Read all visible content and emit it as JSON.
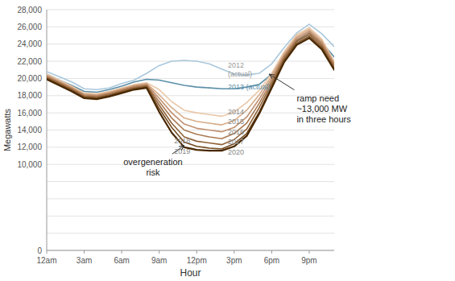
{
  "chart_data": {
    "type": "line",
    "xlabel": "Hour",
    "ylabel": "Megawatts",
    "x": [
      0,
      1,
      2,
      3,
      4,
      5,
      6,
      7,
      8,
      9,
      10,
      11,
      12,
      13,
      14,
      15,
      16,
      17,
      18,
      19,
      20,
      21,
      22,
      23
    ],
    "xlim": [
      0,
      23
    ],
    "xticks": [
      {
        "value": 0,
        "label": "12am"
      },
      {
        "value": 3,
        "label": "3am"
      },
      {
        "value": 6,
        "label": "6am"
      },
      {
        "value": 9,
        "label": "9am"
      },
      {
        "value": 12,
        "label": "12pm"
      },
      {
        "value": 15,
        "label": "3pm"
      },
      {
        "value": 18,
        "label": "6pm"
      },
      {
        "value": 21,
        "label": "9pm"
      }
    ],
    "ylim": [
      0,
      28000
    ],
    "yticks": [
      0,
      {
        "value": 2000,
        "label": null
      },
      {
        "value": 4000,
        "label": null
      },
      {
        "value": 6000,
        "label": null
      },
      {
        "value": 8000,
        "label": null
      },
      {
        "value": 10000,
        "label": "10,000"
      },
      {
        "value": 12000,
        "label": "12,000"
      },
      {
        "value": 14000,
        "label": "14,000"
      },
      {
        "value": 16000,
        "label": "16,000"
      },
      {
        "value": 18000,
        "label": "18,000"
      },
      {
        "value": 20000,
        "label": "20,000"
      },
      {
        "value": 22000,
        "label": "22,000"
      },
      {
        "value": 24000,
        "label": "24,000"
      },
      {
        "value": 26000,
        "label": "26,000"
      },
      {
        "value": 28000,
        "label": "28,000"
      }
    ],
    "grid": true,
    "series": [
      {
        "name": "2012",
        "color": "#aac8dc",
        "values": [
          20800,
          20200,
          19600,
          18800,
          18700,
          18900,
          19400,
          19800,
          20600,
          21500,
          22000,
          22100,
          22000,
          21700,
          21100,
          20500,
          20400,
          20600,
          21700,
          23600,
          25300,
          26300,
          25200,
          23700
        ]
      },
      {
        "name": "2013",
        "color": "#5b8fa8",
        "values": [
          20500,
          19800,
          19200,
          18500,
          18400,
          18700,
          19100,
          19600,
          19900,
          19800,
          19500,
          19200,
          19000,
          18900,
          18800,
          18800,
          19000,
          19300,
          20500,
          22500,
          24400,
          25300,
          24200,
          22500
        ]
      },
      {
        "name": "2014",
        "color": "#eac8a8",
        "values": [
          20500,
          19800,
          19100,
          18300,
          18200,
          18500,
          18900,
          19300,
          19500,
          18700,
          17300,
          16300,
          16000,
          15800,
          15600,
          16100,
          17200,
          18600,
          20600,
          23100,
          25100,
          25900,
          24600,
          22000
        ]
      },
      {
        "name": "2015",
        "color": "#d6ac88",
        "values": [
          20400,
          19700,
          19000,
          18200,
          18100,
          18400,
          18800,
          19200,
          19400,
          18100,
          16600,
          15400,
          15000,
          14800,
          14600,
          15100,
          16300,
          18100,
          20300,
          22900,
          24900,
          25700,
          24400,
          21800
        ]
      },
      {
        "name": "2016",
        "color": "#c29070",
        "values": [
          20300,
          19600,
          18900,
          18100,
          18000,
          18300,
          18700,
          19100,
          19300,
          17700,
          16000,
          14700,
          14200,
          14000,
          13800,
          14300,
          15500,
          17600,
          20000,
          22700,
          24700,
          25500,
          24200,
          21700
        ]
      },
      {
        "name": "2017",
        "color": "#aa7a52",
        "values": [
          20200,
          19500,
          18800,
          18000,
          17900,
          18200,
          18600,
          19000,
          19200,
          17300,
          15400,
          14000,
          13500,
          13200,
          13000,
          13600,
          14800,
          17100,
          19700,
          22500,
          24500,
          25300,
          24000,
          21500
        ]
      },
      {
        "name": "2018",
        "color": "#8e6238",
        "values": [
          20100,
          19400,
          18700,
          17900,
          17800,
          18100,
          18500,
          18900,
          19100,
          16900,
          14800,
          13200,
          12700,
          12500,
          12300,
          12900,
          14100,
          16600,
          19400,
          22300,
          24300,
          25100,
          23800,
          21300
        ]
      },
      {
        "name": "2019",
        "color": "#724a20",
        "values": [
          20000,
          19300,
          18600,
          17800,
          17700,
          18000,
          18400,
          18800,
          19000,
          16500,
          14300,
          12600,
          12100,
          11900,
          11800,
          12400,
          13600,
          16100,
          19100,
          22100,
          24100,
          24900,
          23600,
          21100
        ]
      },
      {
        "name": "2020",
        "color": "#4a2800",
        "values": [
          19900,
          19200,
          18500,
          17700,
          17600,
          17900,
          18300,
          18700,
          18900,
          16100,
          13700,
          12000,
          11700,
          11600,
          11600,
          12100,
          13300,
          15900,
          18900,
          21900,
          23900,
          24700,
          23400,
          21000
        ]
      }
    ],
    "annotations": [
      {
        "text": "2012\n(actual)",
        "x": 14.5,
        "y": 21000,
        "color": "#999999"
      },
      {
        "text": "2013 (actual)",
        "x": 14.5,
        "y": 19000,
        "color": "#5b8fa8"
      },
      {
        "text": "2014",
        "x": 14.5,
        "y": 16100,
        "color": "#888888"
      },
      {
        "text": "2015",
        "x": 14.5,
        "y": 15050,
        "color": "#888888"
      },
      {
        "text": "2016",
        "x": 14.5,
        "y": 14050,
        "color": "#888888"
      },
      {
        "text": "2017",
        "x": 14.5,
        "y": 13100,
        "color": "#888888"
      },
      {
        "text": "2018",
        "x": 10.2,
        "y": 12700,
        "color": "#888888"
      },
      {
        "text": "2019",
        "x": 10.2,
        "y": 12200,
        "color": "#888888"
      },
      {
        "text": "2020",
        "x": 14.5,
        "y": 11900,
        "color": "#888888"
      },
      {
        "text": "overgeneration\nrisk",
        "x": 8.5,
        "y": 10600,
        "arrow_x": 11.0,
        "arrow_y": 12200,
        "color": "#222222"
      },
      {
        "text": "ramp need\n~13,000 MW\nin three hours",
        "x": 20.0,
        "y": 16500,
        "arrow_x": 17.8,
        "arrow_y": 20500,
        "color": "#222222"
      }
    ]
  }
}
